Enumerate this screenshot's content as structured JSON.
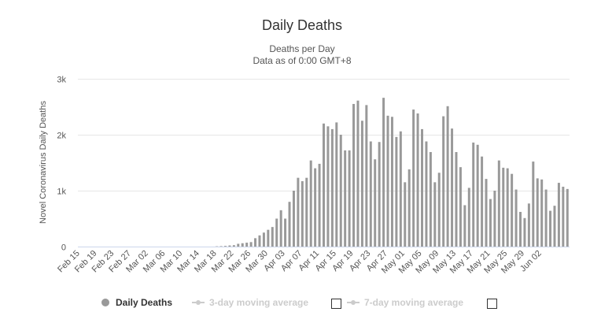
{
  "chart_data": {
    "type": "bar",
    "title": "Daily Deaths",
    "subtitle_line1": "Deaths per Day",
    "subtitle_line2": "Data as of 0:00 GMT+8",
    "ylabel": "Novel Coronavirus Daily Deaths",
    "ylim": [
      0,
      3000
    ],
    "y_ticks": [
      0,
      1000,
      2000,
      3000
    ],
    "y_tick_labels": [
      "0",
      "1k",
      "2k",
      "3k"
    ],
    "x_tick_labels": [
      "Feb 15",
      "Feb 19",
      "Feb 23",
      "Feb 27",
      "Mar 02",
      "Mar 06",
      "Mar 10",
      "Mar 14",
      "Mar 18",
      "Mar 22",
      "Mar 26",
      "Mar 30",
      "Apr 03",
      "Apr 07",
      "Apr 11",
      "Apr 15",
      "Apr 19",
      "Apr 23",
      "Apr 27",
      "May 01",
      "May 05",
      "May 09",
      "May 13",
      "May 17",
      "May 21",
      "May 25",
      "May 29",
      "Jun 02"
    ],
    "x_tick_every": 4,
    "bar_color": "#999999",
    "series": [
      {
        "name": "Daily Deaths",
        "start_date": "Feb 15",
        "values": [
          0,
          0,
          0,
          0,
          0,
          0,
          0,
          0,
          0,
          0,
          0,
          0,
          0,
          0,
          0,
          0,
          0,
          0,
          0,
          0,
          0,
          0,
          0,
          0,
          0,
          0,
          0,
          0,
          0,
          0,
          0,
          0,
          5,
          8,
          12,
          20,
          25,
          50,
          60,
          70,
          80,
          150,
          200,
          250,
          300,
          350,
          500,
          650,
          500,
          800,
          1000,
          1230,
          1170,
          1230,
          1540,
          1400,
          1480,
          2200,
          2150,
          2100,
          2220,
          2000,
          1720,
          1720,
          2550,
          2610,
          2250,
          2530,
          1880,
          1560,
          1870,
          2660,
          2340,
          2320,
          1960,
          2060,
          1150,
          1380,
          2450,
          2380,
          2100,
          1880,
          1690,
          1150,
          1320,
          2330,
          2510,
          2110,
          1690,
          1420,
          740,
          1050,
          1860,
          1820,
          1610,
          1210,
          850,
          1000,
          1540,
          1410,
          1400,
          1300,
          1020,
          620,
          510,
          770,
          1520,
          1220,
          1200,
          1020,
          640,
          730,
          1140,
          1070,
          1030
        ]
      }
    ]
  },
  "legend": {
    "daily_deaths": "Daily Deaths",
    "ma3": "3-day moving average",
    "ma7": "7-day moving average"
  }
}
